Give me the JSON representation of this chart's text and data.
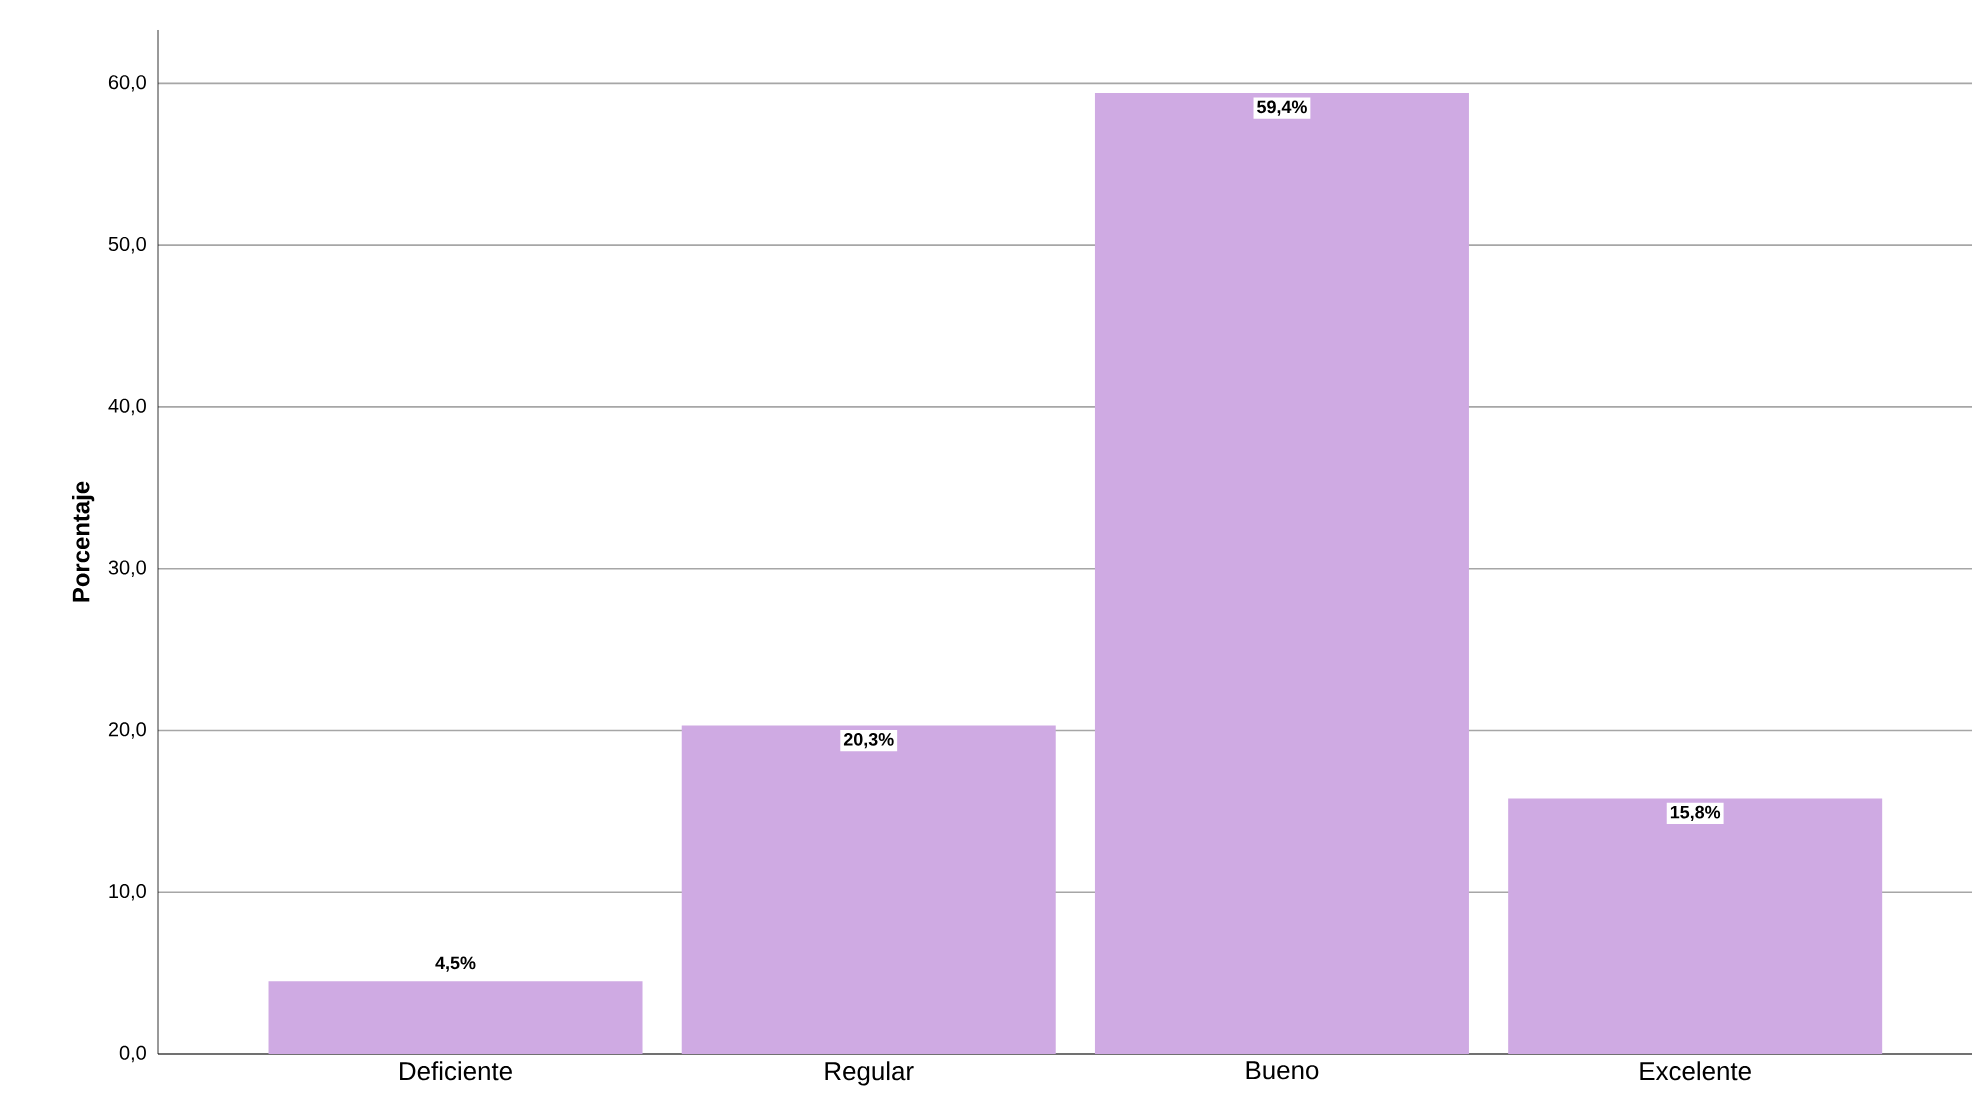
{
  "chart_data": {
    "type": "bar",
    "ylabel": "Porcentaje",
    "categories": [
      "Deficiente",
      "Regular",
      "Bueno",
      "Excelente"
    ],
    "values": [
      4.5,
      20.3,
      59.4,
      15.8
    ],
    "value_labels": [
      "4,5%",
      "20,3%",
      "59,4%",
      "15,8%"
    ],
    "color": "#cfaae3",
    "ylim": [
      0,
      63.3
    ],
    "yticks": [
      {
        "value": 0,
        "label": "0,0"
      },
      {
        "value": 10,
        "label": "10,0"
      },
      {
        "value": 20,
        "label": "20,0"
      },
      {
        "value": 30,
        "label": "30,0"
      },
      {
        "value": 40,
        "label": "40,0"
      },
      {
        "value": 50,
        "label": "50,0"
      },
      {
        "value": 60,
        "label": "60,0"
      }
    ],
    "grid": "y"
  }
}
